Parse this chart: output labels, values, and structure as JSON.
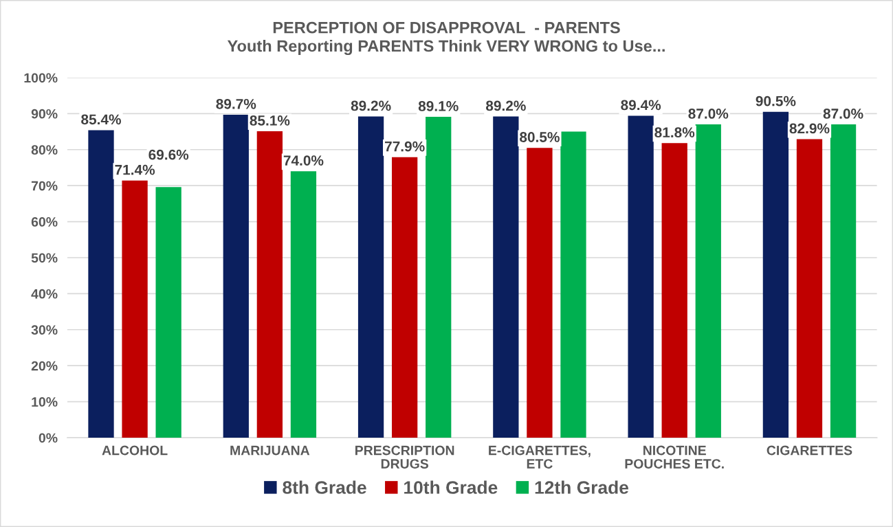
{
  "chart_data": {
    "type": "bar",
    "title": "PERCEPTION OF DISAPPROVAL  - PARENTS",
    "subtitle": "Youth Reporting PARENTS Think VERY WRONG to Use...",
    "categories": [
      "ALCOHOL",
      "MARIJUANA",
      "PRESCRIPTION\nDRUGS",
      "E-CIGARETTES,\nETC",
      "NICOTINE\nPOUCHES ETC.",
      "CIGARETTES"
    ],
    "series": [
      {
        "name": "8th Grade",
        "color": "#0b1f5e",
        "values": [
          85.4,
          89.7,
          89.2,
          89.2,
          89.4,
          90.5
        ],
        "value_labels": [
          "85.4%",
          "89.7%",
          "89.2%",
          "89.2%",
          "89.4%",
          "90.5%"
        ]
      },
      {
        "name": "10th Grade",
        "color": "#c00000",
        "values": [
          71.4,
          85.1,
          77.9,
          80.5,
          81.8,
          82.9
        ],
        "value_labels": [
          "71.4%",
          "85.1%",
          "77.9%",
          "80.5%",
          "81.8%",
          "82.9%"
        ]
      },
      {
        "name": "12th Grade",
        "color": "#00b050",
        "values": [
          69.6,
          74.0,
          89.1,
          85,
          87.0,
          87.0
        ],
        "value_labels": [
          "69.6%",
          "74.0%",
          "89.1%",
          null,
          "87.0%",
          "87.0%"
        ]
      }
    ],
    "ylim": [
      0,
      100
    ],
    "yticks": [
      {
        "value": 0,
        "label": "0%"
      },
      {
        "value": 10,
        "label": "10%"
      },
      {
        "value": 20,
        "label": "20%"
      },
      {
        "value": 30,
        "label": "30%"
      },
      {
        "value": 40,
        "label": "40%"
      },
      {
        "value": 50,
        "label": "50%"
      },
      {
        "value": 60,
        "label": "60%"
      },
      {
        "value": 70,
        "label": "70%"
      },
      {
        "value": 80,
        "label": "80%"
      },
      {
        "value": 90,
        "label": "90%"
      },
      {
        "value": 100,
        "label": "100%"
      }
    ],
    "grid": "y",
    "legend": "bottom"
  }
}
